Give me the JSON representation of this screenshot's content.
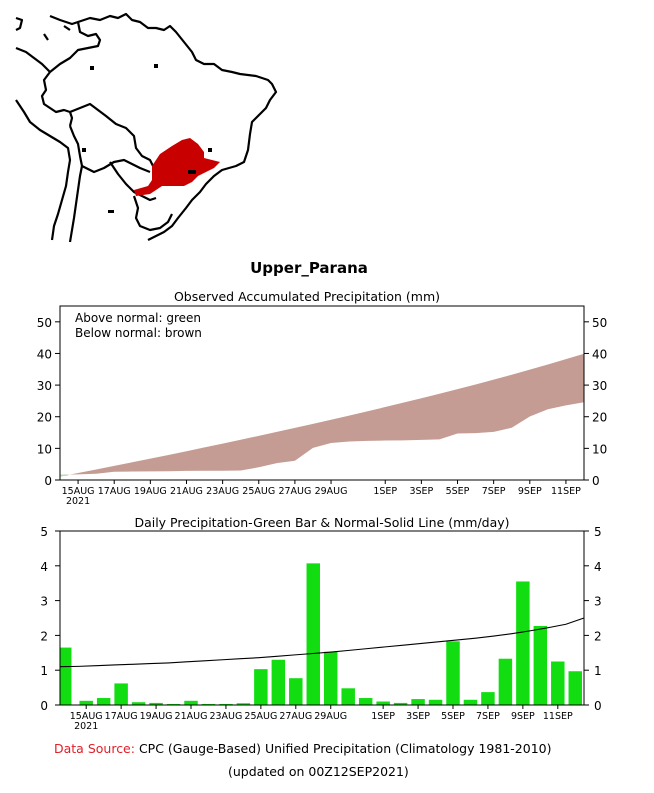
{
  "region_title": "Upper_Parana",
  "colors": {
    "below_normal_fill": "#c49c93",
    "above_normal_fill": "#a8e8a0",
    "bar_fill": "#11dd11",
    "region_fill": "#c80000",
    "data_source_label": "#e0202a"
  },
  "footer": {
    "data_source_label": "Data Source:",
    "data_source_text": "CPC (Gauge-Based) Unified Precipitation (Climatology 1981-2010)",
    "updated_text": "(updated on 00Z12SEP2021)"
  },
  "chart_data": [
    {
      "type": "area",
      "title": "Observed Accumulated Precipitation (mm)",
      "annotations": [
        "Above normal: green",
        "Below normal: brown"
      ],
      "xlabel": "",
      "ylabel": "",
      "ylim": [
        0,
        55
      ],
      "yticks": [
        0,
        10,
        20,
        30,
        40,
        50
      ],
      "x_tick_labels": [
        "15AUG",
        "17AUG",
        "19AUG",
        "21AUG",
        "23AUG",
        "25AUG",
        "27AUG",
        "29AUG",
        "1SEP",
        "3SEP",
        "5SEP",
        "7SEP",
        "9SEP",
        "11SEP"
      ],
      "x_tick_days": [
        1,
        3,
        5,
        7,
        9,
        11,
        13,
        15,
        18,
        20,
        22,
        24,
        26,
        28
      ],
      "x_sub_label": "2021",
      "x_days": [
        0,
        1,
        2,
        3,
        4,
        5,
        6,
        7,
        8,
        9,
        10,
        11,
        12,
        13,
        14,
        15,
        16,
        17,
        18,
        19,
        20,
        21,
        22,
        23,
        24,
        25,
        26,
        27,
        28,
        29
      ],
      "series": [
        {
          "name": "Normal accumulated",
          "values": [
            1.1,
            2.2,
            3.3,
            4.45,
            5.6,
            6.75,
            7.92,
            9.1,
            10.3,
            11.5,
            12.72,
            13.95,
            15.2,
            16.46,
            17.74,
            19.04,
            20.36,
            21.7,
            23.06,
            24.44,
            25.84,
            27.26,
            28.72,
            30.2,
            31.72,
            33.28,
            34.88,
            36.52,
            38.2,
            39.92
          ]
        },
        {
          "name": "Observed accumulated",
          "values": [
            1.65,
            1.77,
            1.97,
            2.59,
            2.67,
            2.73,
            2.76,
            2.88,
            2.91,
            2.94,
            2.99,
            4.02,
            5.32,
            6.09,
            10.16,
            11.69,
            12.17,
            12.37,
            12.47,
            12.53,
            12.7,
            12.85,
            14.68,
            14.83,
            15.2,
            16.53,
            20.08,
            22.35,
            23.6,
            24.57
          ]
        }
      ]
    },
    {
      "type": "bar",
      "title": "Daily Precipitation-Green Bar & Normal-Solid Line (mm/day)",
      "xlabel": "",
      "ylabel": "",
      "ylim": [
        0,
        5
      ],
      "yticks": [
        0,
        1,
        2,
        3,
        4,
        5
      ],
      "x_tick_labels": [
        "15AUG",
        "17AUG",
        "19AUG",
        "21AUG",
        "23AUG",
        "25AUG",
        "27AUG",
        "29AUG",
        "1SEP",
        "3SEP",
        "5SEP",
        "7SEP",
        "9SEP",
        "11SEP"
      ],
      "x_tick_days": [
        1,
        3,
        5,
        7,
        9,
        11,
        13,
        15,
        18,
        20,
        22,
        24,
        26,
        28
      ],
      "x_sub_label": "2021",
      "x_days": [
        0,
        1,
        2,
        3,
        4,
        5,
        6,
        7,
        8,
        9,
        10,
        11,
        12,
        13,
        14,
        15,
        16,
        17,
        18,
        19,
        20,
        21,
        22,
        23,
        24,
        25,
        26,
        27,
        28,
        29
      ],
      "series": [
        {
          "name": "Daily precipitation",
          "type": "bar",
          "values": [
            1.65,
            0.12,
            0.2,
            0.62,
            0.08,
            0.06,
            0.03,
            0.12,
            0.03,
            0.03,
            0.05,
            1.03,
            1.3,
            0.77,
            4.07,
            1.53,
            0.48,
            0.2,
            0.1,
            0.06,
            0.17,
            0.15,
            1.83,
            0.15,
            0.37,
            1.33,
            3.55,
            2.27,
            1.25,
            0.97
          ]
        },
        {
          "name": "Normal",
          "type": "line",
          "values": [
            1.1,
            1.11,
            1.13,
            1.15,
            1.17,
            1.19,
            1.21,
            1.24,
            1.27,
            1.3,
            1.33,
            1.36,
            1.4,
            1.44,
            1.48,
            1.52,
            1.57,
            1.62,
            1.67,
            1.72,
            1.77,
            1.82,
            1.87,
            1.92,
            1.98,
            2.05,
            2.13,
            2.22,
            2.32,
            2.5
          ]
        }
      ]
    }
  ]
}
